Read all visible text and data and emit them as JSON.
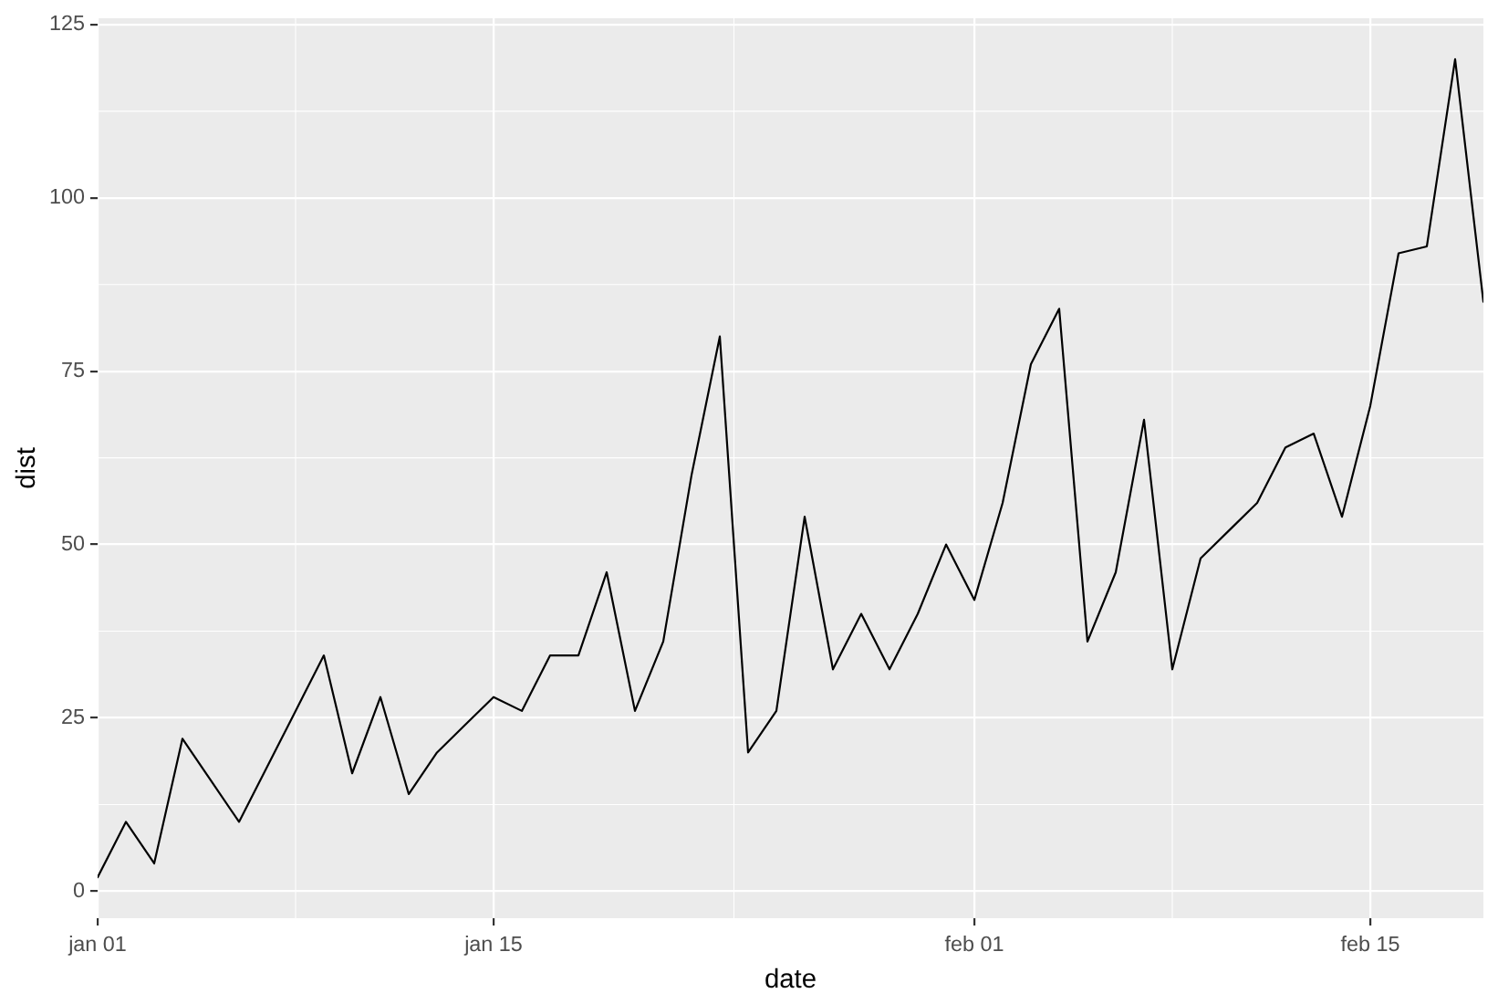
{
  "chart_data": {
    "type": "line",
    "xlabel": "date",
    "ylabel": "dist",
    "x": [
      "--01-01",
      "--01-02",
      "--01-03",
      "--01-04",
      "--01-05",
      "--01-06",
      "--01-07",
      "--01-08",
      "--01-09",
      "--01-10",
      "--01-11",
      "--01-12",
      "--01-13",
      "--01-14",
      "--01-15",
      "--01-16",
      "--01-17",
      "--01-18",
      "--01-19",
      "--01-20",
      "--01-21",
      "--01-22",
      "--01-23",
      "--01-24",
      "--01-25",
      "--01-26",
      "--01-27",
      "--01-28",
      "--01-29",
      "--01-30",
      "--01-31",
      "--02-01",
      "--02-02",
      "--02-03",
      "--02-04",
      "--02-05",
      "--02-06",
      "--02-07",
      "--02-08",
      "--02-09",
      "--02-10",
      "--02-11",
      "--02-12",
      "--02-13",
      "--02-14",
      "--02-15",
      "--02-16",
      "--02-17",
      "--02-18",
      "--02-19"
    ],
    "values": [
      2,
      10,
      4,
      22,
      16,
      10,
      18,
      26,
      34,
      17,
      28,
      14,
      20,
      24,
      28,
      26,
      34,
      34,
      46,
      26,
      36,
      60,
      80,
      20,
      26,
      54,
      32,
      40,
      32,
      40,
      50,
      42,
      56,
      76,
      84,
      36,
      46,
      68,
      32,
      48,
      52,
      56,
      64,
      66,
      54,
      70,
      92,
      93,
      120,
      85
    ],
    "color": "#000000",
    "xlim": [
      "--01-01",
      "--02-19"
    ],
    "xticks": [
      {
        "value": "--01-01",
        "label": "jan 01"
      },
      {
        "value": "--01-15",
        "label": "jan 15"
      },
      {
        "value": "--02-01",
        "label": "feb 01"
      },
      {
        "value": "--02-15",
        "label": "feb 15"
      }
    ],
    "ylim": [
      -3.9,
      125.9
    ],
    "yticks": [
      0,
      25,
      50,
      75,
      100,
      125
    ],
    "grid": true,
    "marker": "none",
    "line_style": "solid"
  }
}
